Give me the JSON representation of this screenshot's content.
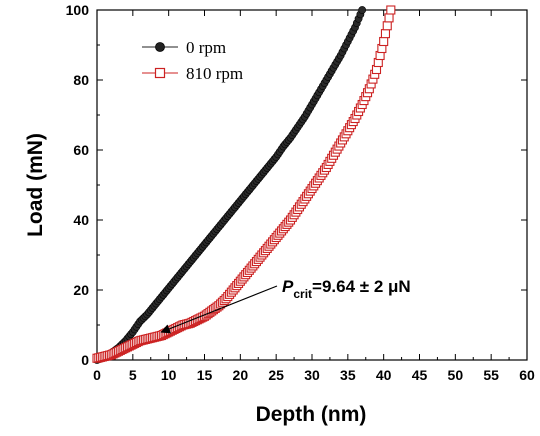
{
  "chart_data": {
    "type": "scatter",
    "xlabel": "Depth (nm)",
    "ylabel": "Load (mN)",
    "xlim": [
      0,
      60
    ],
    "ylim": [
      0,
      100
    ],
    "xticks": [
      0,
      5,
      10,
      15,
      20,
      25,
      30,
      35,
      40,
      45,
      50,
      55,
      60
    ],
    "yticks": [
      0,
      20,
      40,
      60,
      80,
      100
    ],
    "grid": false,
    "legend_position": "top-left",
    "series": [
      {
        "name": "0 rpm",
        "marker": "filled-circle",
        "color": "#222222",
        "x": [
          0,
          1,
          2,
          3,
          4,
          5,
          6,
          7,
          8,
          9,
          10,
          11,
          12,
          13,
          14,
          15,
          16,
          17,
          18,
          19,
          20,
          21,
          22,
          23,
          24,
          25,
          26,
          27,
          28,
          29,
          30,
          31,
          32,
          33,
          34,
          35,
          36,
          37
        ],
        "y": [
          0,
          0.8,
          2,
          3.5,
          5.5,
          8,
          11,
          13,
          15.5,
          18,
          20.5,
          23,
          25.5,
          28,
          30.5,
          33,
          35.5,
          38,
          40.5,
          43,
          45.5,
          48,
          50.5,
          53,
          55.5,
          58,
          61,
          63.5,
          66.5,
          69.5,
          73,
          76.5,
          80,
          83.5,
          87,
          91,
          95,
          100
        ]
      },
      {
        "name": "810 rpm",
        "marker": "open-square",
        "color": "#cc2222",
        "x": [
          0,
          1,
          2,
          3,
          4,
          5,
          6,
          7,
          8,
          9,
          10,
          11,
          12,
          13,
          14,
          15,
          16,
          17,
          18,
          19,
          20,
          21,
          22,
          23,
          24,
          25,
          26,
          27,
          28,
          29,
          30,
          31,
          32,
          33,
          34,
          35,
          36,
          37,
          38,
          39,
          40,
          41
        ],
        "y": [
          0.5,
          1,
          1.5,
          2.5,
          3.5,
          4.5,
          5.5,
          6,
          6.5,
          7,
          8,
          9,
          10,
          10.5,
          11.5,
          12.5,
          14,
          15.5,
          17.5,
          20,
          22.5,
          25,
          27.5,
          30,
          32.5,
          35,
          37.5,
          40,
          43,
          46,
          49,
          52,
          55,
          58.5,
          62,
          65.5,
          69,
          73,
          77.5,
          83,
          91,
          100
        ]
      }
    ],
    "annotation": {
      "symbol": "P",
      "subscript": "crit",
      "text": "=9.64 ± 2 μN",
      "arrow_to": [
        9,
        8
      ]
    }
  }
}
